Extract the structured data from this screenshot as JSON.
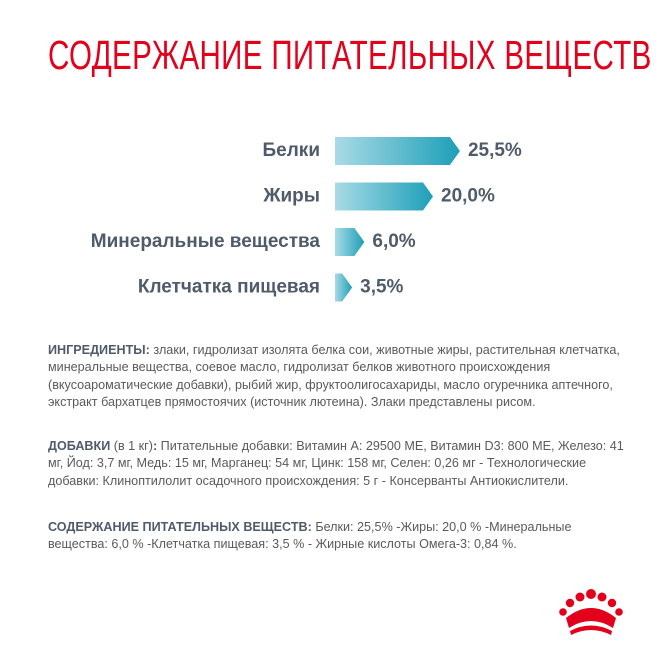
{
  "title": "СОДЕРЖАНИЕ ПИТАТЕЛЬНЫХ ВЕЩЕСТВ",
  "chart_data": {
    "type": "bar",
    "orientation": "horizontal",
    "categories": [
      "Белки",
      "Жиры",
      "Минеральные вещества",
      "Клетчатка пищевая"
    ],
    "values": [
      25.5,
      20.0,
      6.0,
      3.5
    ],
    "value_labels": [
      "25,5%",
      "20,0%",
      "6,0%",
      "3,5%"
    ]
  },
  "ingredients": {
    "heading": "ИНГРЕДИЕНТЫ:",
    "text": "злаки, гидролизат изолята белка сои, животные жиры, растительная клетчатка, минеральные вещества, соевое масло, гидролизат белков животного происхождения (вкусоароматические добавки), рыбий жир, фруктоолигосахариды, масло огуречника аптечного, экстракт бархатцев прямостоячих (источник лютеина). Злаки представлены рисом."
  },
  "additives": {
    "heading": "ДОБАВКИ",
    "note": "(в 1 кг)",
    "colon": ":",
    "text": "Питательные добавки: Витамин А: 29500 МЕ, Витамин D3: 800 МЕ, Железо: 41 мг, Йод: 3,7 мг, Медь: 15 мг, Марганец: 54 мг, Цинк: 158 мг, Селен: 0,26 мг - Технологические добавки: Клиноптилолит осадочного происхождения: 5 г - Консерванты Антиокислители."
  },
  "nutrients": {
    "heading": "СОДЕРЖАНИЕ ПИТАТЕЛЬНЫХ ВЕЩЕСТВ:",
    "text": "Белки: 25,5% -Жиры: 20,0 % -Минеральные вещества: 6,0 % -Клетчатка пищевая: 3,5 % - Жирные кислоты Омега-3: 0,84 %."
  }
}
